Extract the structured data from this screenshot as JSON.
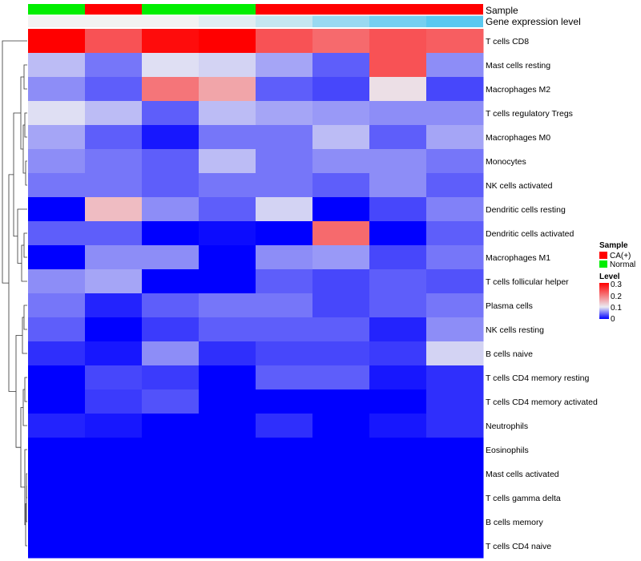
{
  "chart_data": {
    "type": "heatmap",
    "annotation_tracks": [
      {
        "name": "Sample",
        "values": [
          "Normal",
          "CA(+)",
          "Normal",
          "Normal",
          "CA(+)",
          "CA(+)",
          "CA(+)",
          "CA(+)"
        ]
      },
      {
        "name": "Gene expression level",
        "values": [
          0.0,
          0.0,
          0.0,
          0.02,
          0.05,
          0.1,
          0.14,
          0.17
        ]
      }
    ],
    "rows": [
      "T cells CD8",
      "Mast cells resting",
      "Macrophages M2",
      "T cells regulatory  Tregs",
      "Macrophages M0",
      "Monocytes",
      "NK cells activated",
      "Dendritic cells resting",
      "Dendritic cells activated",
      "Macrophages M1",
      "T cells follicular helper",
      "Plasma cells",
      "NK cells resting",
      "B cells naive",
      "T cells CD4 memory resting",
      "T cells CD4 memory activated",
      "Neutrophils",
      "Eosinophils",
      "Mast cells activated",
      "T cells gamma delta",
      "B cells memory",
      "T cells CD4 naive"
    ],
    "values": [
      [
        0.3,
        0.23,
        0.29,
        0.3,
        0.23,
        0.21,
        0.23,
        0.22
      ],
      [
        0.08,
        0.05,
        0.095,
        0.09,
        0.07,
        0.04,
        0.23,
        0.06
      ],
      [
        0.06,
        0.04,
        0.2,
        0.16,
        0.04,
        0.03,
        0.11,
        0.03
      ],
      [
        0.095,
        0.08,
        0.04,
        0.08,
        0.07,
        0.065,
        0.06,
        0.06
      ],
      [
        0.07,
        0.04,
        0.01,
        0.05,
        0.05,
        0.08,
        0.04,
        0.07
      ],
      [
        0.06,
        0.05,
        0.04,
        0.08,
        0.05,
        0.06,
        0.06,
        0.05
      ],
      [
        0.05,
        0.05,
        0.04,
        0.05,
        0.05,
        0.04,
        0.06,
        0.04
      ],
      [
        0.0,
        0.14,
        0.06,
        0.04,
        0.09,
        0.0,
        0.03,
        0.055
      ],
      [
        0.04,
        0.04,
        0.0,
        0.005,
        0.0,
        0.21,
        0.0,
        0.04
      ],
      [
        0.0,
        0.06,
        0.06,
        0.0,
        0.06,
        0.065,
        0.03,
        0.05
      ],
      [
        0.06,
        0.07,
        0.0,
        0.0,
        0.04,
        0.03,
        0.04,
        0.035
      ],
      [
        0.05,
        0.015,
        0.04,
        0.05,
        0.05,
        0.03,
        0.04,
        0.05
      ],
      [
        0.04,
        0.0,
        0.025,
        0.04,
        0.04,
        0.04,
        0.015,
        0.06
      ],
      [
        0.02,
        0.01,
        0.06,
        0.02,
        0.03,
        0.03,
        0.025,
        0.09
      ],
      [
        0.0,
        0.03,
        0.025,
        0.0,
        0.04,
        0.04,
        0.01,
        0.02
      ],
      [
        0.0,
        0.025,
        0.035,
        0.0,
        0.0,
        0.0,
        0.0,
        0.02
      ],
      [
        0.015,
        0.01,
        0.0,
        0.0,
        0.02,
        0.0,
        0.01,
        0.02
      ],
      [
        0.0,
        0.0,
        0.0,
        0.0,
        0.0,
        0.0,
        0.0,
        0.0
      ],
      [
        0.0,
        0.0,
        0.0,
        0.0,
        0.0,
        0.0,
        0.0,
        0.0
      ],
      [
        0.0,
        0.0,
        0.0,
        0.0,
        0.0,
        0.0,
        0.0,
        0.0
      ],
      [
        0.0,
        0.0,
        0.0,
        0.0,
        0.0,
        0.0,
        0.0,
        0.0
      ],
      [
        0.0,
        0.0,
        0.0,
        0.0,
        0.0,
        0.0,
        0.0,
        0.0
      ]
    ],
    "color_scale": {
      "min": 0,
      "max": 0.3,
      "low": "#0000ff",
      "mid": "#ebebf2",
      "high": "#ff0000"
    },
    "legend": {
      "sample": {
        "title": "Sample",
        "entries": [
          {
            "label": "CA(+)",
            "color": "#ff0000"
          },
          {
            "label": "Normal",
            "color": "#00ee00"
          }
        ]
      },
      "level": {
        "title": "Level",
        "ticks": [
          0.3,
          0.2,
          0.1,
          0
        ],
        "tick_labels": [
          "0.3",
          "0.2",
          "0.1",
          "0"
        ]
      }
    },
    "gene_track_colors": {
      "low": "#f2f2f2",
      "high": "#5ac8f0"
    }
  }
}
